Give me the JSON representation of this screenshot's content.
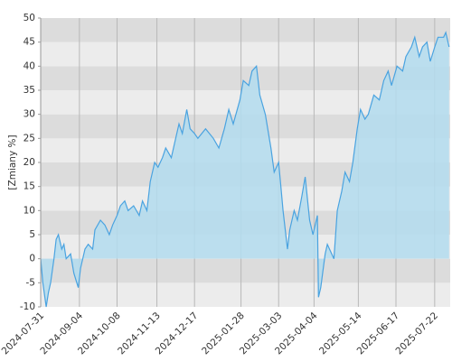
{
  "chart_data": {
    "type": "area",
    "y_label": "[Zmiany %]",
    "x": [
      "2024-07-31",
      "2024-08-02",
      "2024-08-05",
      "2024-08-07",
      "2024-08-09",
      "2024-08-12",
      "2024-08-14",
      "2024-08-16",
      "2024-08-19",
      "2024-08-21",
      "2024-08-23",
      "2024-08-27",
      "2024-08-30",
      "2024-09-03",
      "2024-09-05",
      "2024-09-09",
      "2024-09-12",
      "2024-09-16",
      "2024-09-18",
      "2024-09-23",
      "2024-09-27",
      "2024-10-01",
      "2024-10-04",
      "2024-10-08",
      "2024-10-11",
      "2024-10-15",
      "2024-10-18",
      "2024-10-23",
      "2024-10-28",
      "2024-10-31",
      "2024-11-04",
      "2024-11-07",
      "2024-11-11",
      "2024-11-14",
      "2024-11-18",
      "2024-11-21",
      "2024-11-26",
      "2024-11-29",
      "2024-12-03",
      "2024-12-06",
      "2024-12-10",
      "2024-12-13",
      "2024-12-17",
      "2024-12-20",
      "2024-12-27",
      "2025-01-03",
      "2025-01-08",
      "2025-01-13",
      "2025-01-17",
      "2025-01-21",
      "2025-01-27",
      "2025-01-30",
      "2025-02-04",
      "2025-02-07",
      "2025-02-11",
      "2025-02-14",
      "2025-02-19",
      "2025-02-24",
      "2025-02-27",
      "2025-03-03",
      "2025-03-05",
      "2025-03-07",
      "2025-03-11",
      "2025-03-13",
      "2025-03-17",
      "2025-03-20",
      "2025-03-24",
      "2025-03-27",
      "2025-03-31",
      "2025-04-03",
      "2025-04-07",
      "2025-04-08",
      "2025-04-10",
      "2025-04-14",
      "2025-04-16",
      "2025-04-22",
      "2025-04-25",
      "2025-04-29",
      "2025-05-02",
      "2025-05-06",
      "2025-05-09",
      "2025-05-13",
      "2025-05-16",
      "2025-05-20",
      "2025-05-23",
      "2025-05-28",
      "2025-06-02",
      "2025-06-06",
      "2025-06-10",
      "2025-06-13",
      "2025-06-18",
      "2025-06-23",
      "2025-06-26",
      "2025-07-01",
      "2025-07-04",
      "2025-07-08",
      "2025-07-11",
      "2025-07-15",
      "2025-07-18",
      "2025-07-22",
      "2025-07-25",
      "2025-07-30",
      "2025-08-01",
      "2025-08-04"
    ],
    "values": [
      0,
      -5,
      -10,
      -7,
      -5,
      0,
      4,
      5,
      2,
      3,
      0,
      1,
      -3,
      -6,
      -2,
      2,
      3,
      2,
      6,
      8,
      7,
      5,
      7,
      9,
      11,
      12,
      10,
      11,
      9,
      12,
      10,
      16,
      20,
      19,
      21,
      23,
      21,
      24,
      28,
      26,
      31,
      27,
      26,
      25,
      27,
      25,
      23,
      27,
      31,
      28,
      33,
      37,
      36,
      39,
      40,
      34,
      30,
      23,
      18,
      20,
      15,
      10,
      2,
      6,
      10,
      8,
      13,
      17,
      8,
      5,
      9,
      -8,
      -6,
      1,
      3,
      0,
      10,
      14,
      18,
      16,
      20,
      27,
      31,
      29,
      30,
      34,
      33,
      37,
      39,
      36,
      40,
      39,
      42,
      44,
      46,
      42,
      44,
      45,
      41,
      44,
      46,
      46,
      47,
      44
    ],
    "color": "#4aa3e0",
    "fill": "#b3dcee",
    "band_colors": [
      "#dcdcdc",
      "#ececec"
    ],
    "xlim": [
      "2024-07-31",
      "2025-08-05"
    ],
    "xticks": [
      "2024-07-31",
      "2024-09-04",
      "2024-10-08",
      "2024-11-13",
      "2024-12-17",
      "2025-01-28",
      "2025-03-03",
      "2025-04-04",
      "2025-05-14",
      "2025-06-17",
      "2025-07-22"
    ],
    "ylim": [
      -10,
      50
    ],
    "yticks": [
      -10,
      -5,
      0,
      5,
      10,
      15,
      20,
      25,
      30,
      35,
      40,
      45,
      50
    ],
    "grid": true
  }
}
